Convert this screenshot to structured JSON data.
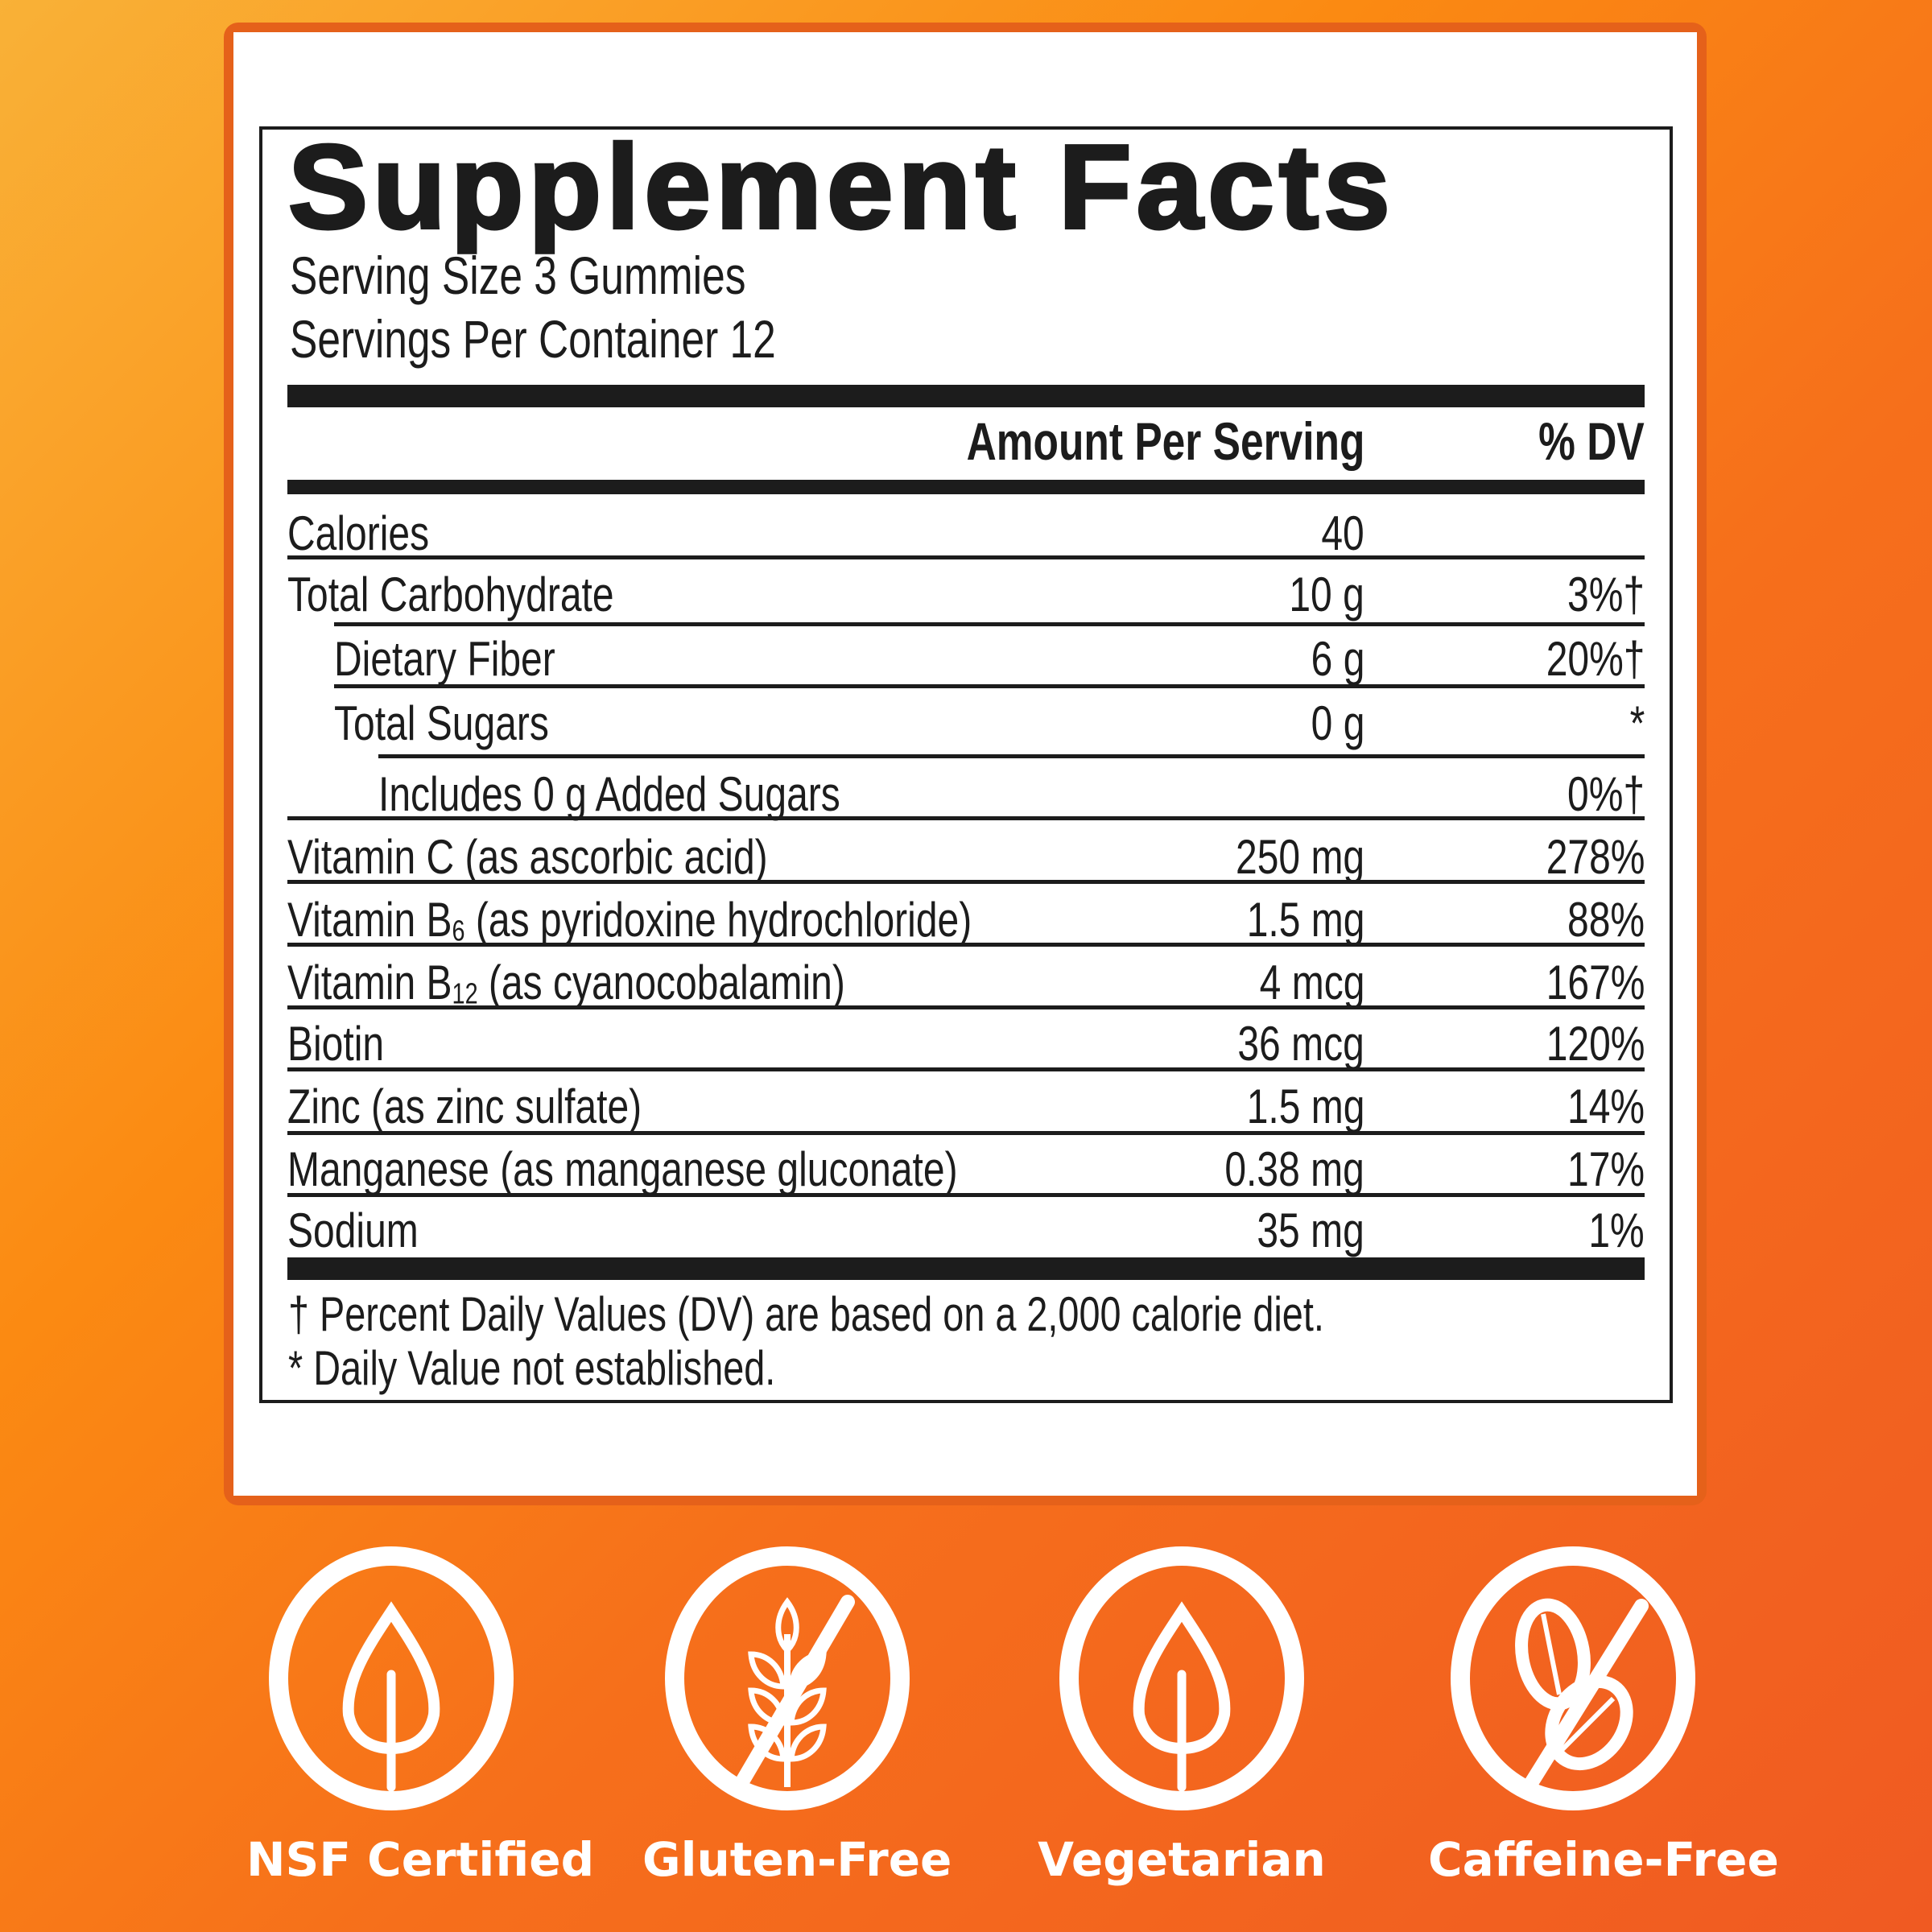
{
  "label": {
    "title": "Supplement Facts",
    "serving_size": "Serving Size 3 Gummies",
    "servings_per_container": "Servings Per Container 12",
    "header_amount": "Amount Per Serving",
    "header_dv": "% DV",
    "rows": [
      {
        "name": "Calories",
        "amount": "40",
        "dv": "",
        "indent": 0
      },
      {
        "name": "Total Carbohydrate",
        "amount": "10 g",
        "dv": "3%†",
        "indent": 0
      },
      {
        "name": "Dietary Fiber",
        "amount": "6 g",
        "dv": "20%†",
        "indent": 1
      },
      {
        "name": "Total Sugars",
        "amount": "0 g",
        "dv": "*",
        "indent": 1
      },
      {
        "name": "Includes 0 g Added Sugars",
        "amount": "",
        "dv": "0%†",
        "indent": 2
      },
      {
        "name": "Vitamin C (as ascorbic acid)",
        "amount": "250 mg",
        "dv": "278%",
        "indent": 0
      },
      {
        "name_prefix": "Vitamin B",
        "name_sub": "6",
        "name_suffix": " (as pyridoxine hydrochloride)",
        "amount": "1.5 mg",
        "dv": "88%",
        "indent": 0
      },
      {
        "name_prefix": "Vitamin B",
        "name_sub": "12",
        "name_suffix": " (as cyanocobalamin)",
        "amount": "4 mcg",
        "dv": "167%",
        "indent": 0
      },
      {
        "name": "Biotin",
        "amount": "36 mcg",
        "dv": "120%",
        "indent": 0
      },
      {
        "name": "Zinc (as zinc sulfate)",
        "amount": "1.5 mg",
        "dv": "14%",
        "indent": 0
      },
      {
        "name": "Manganese (as manganese gluconate)",
        "amount": "0.38 mg",
        "dv": "17%",
        "indent": 0
      },
      {
        "name": "Sodium",
        "amount": "35 mg",
        "dv": "1%",
        "indent": 0
      }
    ],
    "footnote_dagger": "† Percent Daily Values (DV) are based on a 2,000 calorie diet.",
    "footnote_star": "* Daily Value not established."
  },
  "badges": [
    {
      "label": "NSF Certified",
      "icon": "leaf-circle-icon"
    },
    {
      "label": "Gluten-Free",
      "icon": "no-wheat-icon"
    },
    {
      "label": "Vegetarian",
      "icon": "leaf-circle-icon"
    },
    {
      "label": "Caffeine-Free",
      "icon": "no-coffee-bean-icon"
    }
  ],
  "colors": {
    "background_start": "#f9b137",
    "background_end": "#f05a22",
    "card_border": "#e5611a",
    "ink": "#1c1c1c"
  }
}
